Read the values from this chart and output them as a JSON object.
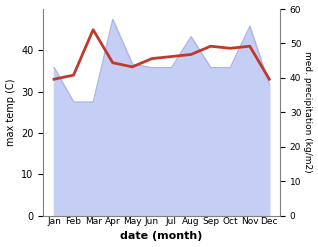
{
  "months": [
    "Jan",
    "Feb",
    "Mar",
    "Apr",
    "May",
    "Jun",
    "Jul",
    "Aug",
    "Sep",
    "Oct",
    "Nov",
    "Dec"
  ],
  "temp": [
    33,
    34,
    45,
    37,
    36,
    38,
    38.5,
    39,
    41,
    40.5,
    41,
    33
  ],
  "precip": [
    43,
    33,
    33,
    57,
    44,
    43,
    43,
    52,
    43,
    43,
    55,
    38
  ],
  "temp_color": "#c0392b",
  "precip_fill_color": "#c5cef5",
  "precip_line_color": "#aab4e8",
  "xlabel": "date (month)",
  "ylabel_left": "max temp (C)",
  "ylabel_right": "med. precipitation (kg/m2)",
  "ylim_left": [
    0,
    50
  ],
  "ylim_right": [
    0,
    60
  ],
  "yticks_left": [
    0,
    10,
    20,
    30,
    40
  ],
  "yticks_right": [
    0,
    10,
    20,
    30,
    40,
    50,
    60
  ],
  "bg_color": "#ffffff"
}
